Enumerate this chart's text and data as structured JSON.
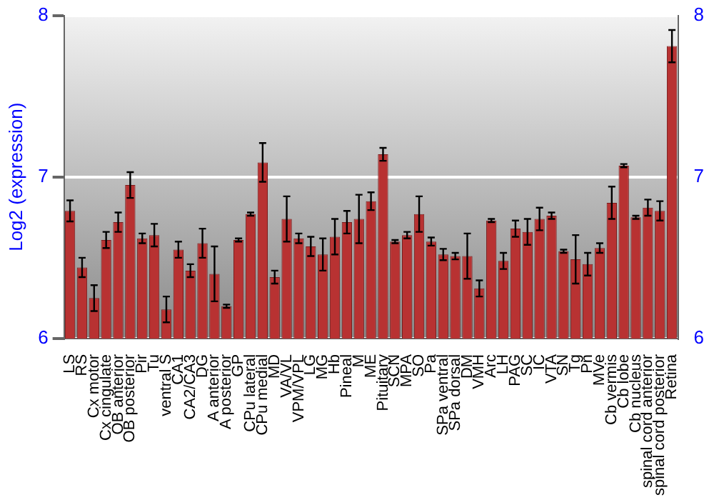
{
  "chart_data": {
    "type": "bar",
    "ylabel": "Log2 (expression)",
    "categories": [
      "LS",
      "RS",
      "Cx motor",
      "Cx cingulate",
      "OB anterior",
      "OB posterior",
      "Pir",
      "Tu",
      "ventral S",
      "CA1",
      "CA2/CA3",
      "DG",
      "A anterior",
      "A posterior",
      "GP",
      "CPu lateral",
      "CPu medial",
      "MD",
      "VA/VL",
      "VPM/VPL",
      "LG",
      "MG",
      "Hb",
      "Pineal",
      "M",
      "ME",
      "Pituitary",
      "SCN",
      "MPA",
      "SO",
      "Pa",
      "SPa ventral",
      "SPa dorsal",
      "DM",
      "VMH",
      "Arc",
      "LH",
      "PAG",
      "SC",
      "IC",
      "VTA",
      "SN",
      "Tg",
      "Pn",
      "MVe",
      "Cb vermis",
      "Cb lobe",
      "Cb nucleus",
      "spinal cord anterior",
      "spinal cord posterior",
      "Retina"
    ],
    "values": [
      6.79,
      6.44,
      6.25,
      6.61,
      6.72,
      6.95,
      6.62,
      6.64,
      6.18,
      6.55,
      6.42,
      6.59,
      6.4,
      6.2,
      6.61,
      6.77,
      7.09,
      6.38,
      6.74,
      6.62,
      6.57,
      6.52,
      6.63,
      6.72,
      6.74,
      6.85,
      7.14,
      6.6,
      6.64,
      6.77,
      6.6,
      6.52,
      6.51,
      6.51,
      6.31,
      6.73,
      6.48,
      6.68,
      6.66,
      6.74,
      6.76,
      6.54,
      6.49,
      6.46,
      6.56,
      6.84,
      7.07,
      6.75,
      6.81,
      6.79,
      7.81
    ],
    "errors": [
      0.065,
      0.06,
      0.08,
      0.05,
      0.06,
      0.08,
      0.03,
      0.07,
      0.08,
      0.05,
      0.04,
      0.09,
      0.17,
      0.01,
      0.01,
      0.01,
      0.12,
      0.04,
      0.14,
      0.03,
      0.06,
      0.1,
      0.11,
      0.07,
      0.15,
      0.055,
      0.04,
      0.01,
      0.02,
      0.11,
      0.025,
      0.035,
      0.02,
      0.14,
      0.05,
      0.01,
      0.05,
      0.05,
      0.08,
      0.07,
      0.02,
      0.01,
      0.15,
      0.07,
      0.03,
      0.1,
      0.01,
      0.01,
      0.05,
      0.06,
      0.1
    ],
    "color": "#b83232",
    "ylim": [
      6,
      8
    ],
    "yticks": [
      6,
      7,
      8
    ],
    "y2lim": [
      6,
      8
    ],
    "y2ticks": [
      6,
      7,
      8
    ],
    "grid": "y",
    "legend": false
  }
}
